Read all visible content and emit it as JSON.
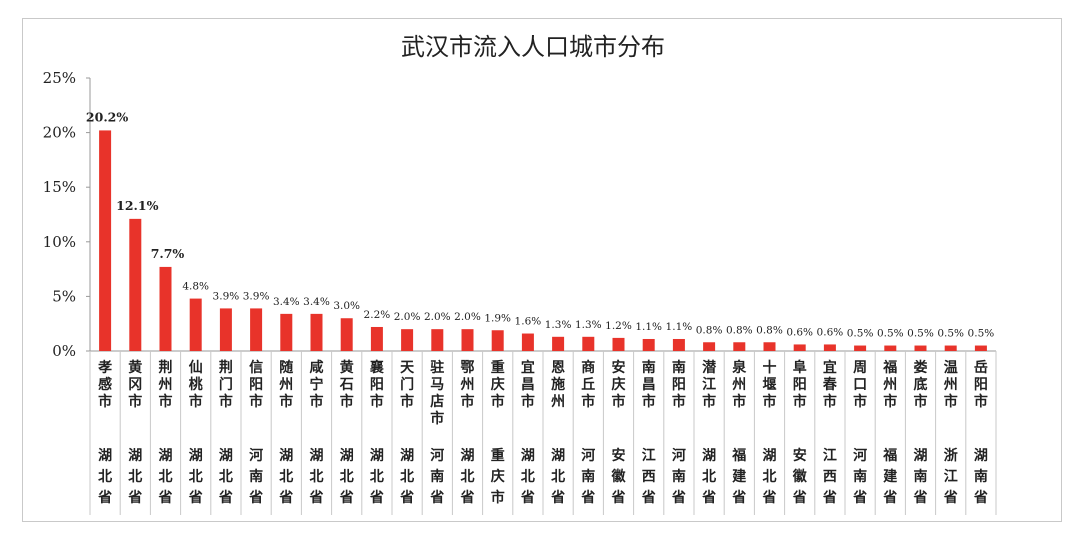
{
  "chart_data": {
    "type": "bar",
    "title": "武汉市流入人口城市分布",
    "categories": [
      "孝感市",
      "黄冈市",
      "荆州市",
      "仙桃市",
      "荆门市",
      "信阳市",
      "随州市",
      "咸宁市",
      "黄石市",
      "襄阳市",
      "天门市",
      "驻马店市",
      "鄂州市",
      "重庆市",
      "宜昌市",
      "恩施州",
      "商丘市",
      "安庆市",
      "南昌市",
      "南阳市",
      "潜江市",
      "泉州市",
      "十堰市",
      "阜阳市",
      "宜春市",
      "周口市",
      "福州市",
      "娄底市",
      "温州市",
      "岳阳市"
    ],
    "provinces": [
      "湖北省",
      "湖北省",
      "湖北省",
      "湖北省",
      "湖北省",
      "河南省",
      "湖北省",
      "湖北省",
      "湖北省",
      "湖北省",
      "湖北省",
      "河南省",
      "湖北省",
      "重庆市",
      "湖北省",
      "湖北省",
      "河南省",
      "安徽省",
      "江西省",
      "河南省",
      "湖北省",
      "福建省",
      "湖北省",
      "安徽省",
      "江西省",
      "河南省",
      "福建省",
      "湖南省",
      "浙江省",
      "湖南省"
    ],
    "values": [
      20.2,
      12.1,
      7.7,
      4.8,
      3.9,
      3.9,
      3.4,
      3.4,
      3.0,
      2.2,
      2.0,
      2.0,
      2.0,
      1.9,
      1.6,
      1.3,
      1.3,
      1.2,
      1.1,
      1.1,
      0.8,
      0.8,
      0.8,
      0.6,
      0.6,
      0.5,
      0.5,
      0.5,
      0.5,
      0.5
    ],
    "labels": [
      "20.2%",
      "12.1%",
      "7.7%",
      "4.8%",
      "3.9%",
      "3.9%",
      "3.4%",
      "3.4%",
      "3.0%",
      "2.2%",
      "2.0%",
      "2.0%",
      "2.0%",
      "1.9%",
      "1.6%",
      "1.3%",
      "1.3%",
      "1.2%",
      "1.1%",
      "1.1%",
      "0.8%",
      "0.8%",
      "0.8%",
      "0.6%",
      "0.6%",
      "0.5%",
      "0.5%",
      "0.5%",
      "0.5%",
      "0.5%"
    ],
    "y_ticks": [
      "0%",
      "5%",
      "10%",
      "15%",
      "20%",
      "25%"
    ],
    "ylim": [
      0,
      25
    ],
    "bar_color": "#e8332a",
    "grid": false
  }
}
